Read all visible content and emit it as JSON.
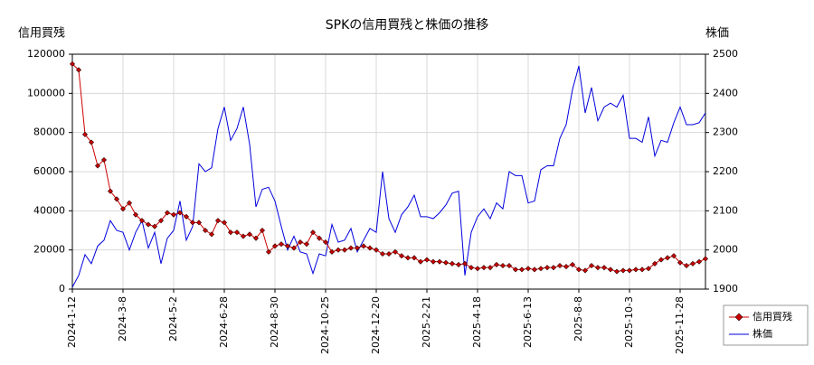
{
  "chart_data": {
    "type": "line",
    "title": "SPKの信用買残と株価の推移",
    "y_label": "信用買残",
    "y2_label": "株価",
    "categories": [
      "2024-1-12",
      null,
      null,
      null,
      null,
      null,
      null,
      null,
      "2024-3-8",
      null,
      null,
      null,
      null,
      null,
      null,
      null,
      "2024-5-2",
      null,
      null,
      null,
      null,
      null,
      null,
      null,
      "2024-6-28",
      null,
      null,
      null,
      null,
      null,
      null,
      null,
      "2024-8-30",
      null,
      null,
      null,
      null,
      null,
      null,
      null,
      "2024-10-25",
      null,
      null,
      null,
      null,
      null,
      null,
      null,
      "2024-12-20",
      null,
      null,
      null,
      null,
      null,
      null,
      null,
      "2025-2-21",
      null,
      null,
      null,
      null,
      null,
      null,
      null,
      "2025-4-18",
      null,
      null,
      null,
      null,
      null,
      null,
      null,
      "2025-6-13",
      null,
      null,
      null,
      null,
      null,
      null,
      null,
      "2025-8-8",
      null,
      null,
      null,
      null,
      null,
      null,
      null,
      "2025-10-3",
      null,
      null,
      null,
      null,
      null,
      null,
      null,
      "2025-11-28",
      null,
      null,
      null,
      null
    ],
    "series": [
      {
        "name": "信用買残",
        "color": "#cc0000",
        "marker": "diamond",
        "axis": "y",
        "values": [
          115000,
          112000,
          79000,
          75000,
          63000,
          66000,
          50000,
          46000,
          41000,
          44000,
          38000,
          35000,
          33000,
          32000,
          35000,
          39000,
          38000,
          39000,
          37000,
          34000,
          34000,
          30000,
          28000,
          35000,
          34000,
          29000,
          29000,
          27000,
          28000,
          26000,
          30000,
          19000,
          22000,
          23000,
          22000,
          21000,
          24000,
          23000,
          29000,
          26000,
          24000,
          19000,
          20000,
          20000,
          21000,
          21000,
          22000,
          21000,
          20000,
          18000,
          18000,
          19000,
          17000,
          16000,
          16000,
          14000,
          15000,
          14000,
          14000,
          13500,
          13000,
          12500,
          13000,
          11000,
          10500,
          11000,
          11000,
          12500,
          12000,
          12000,
          10000,
          10000,
          10500,
          10000,
          10500,
          11000,
          11000,
          12000,
          11500,
          12500,
          10000,
          9500,
          12000,
          11000,
          11000,
          10000,
          9000,
          9500,
          9500,
          10000,
          10000,
          10500,
          13000,
          15000,
          16000,
          17000,
          13500,
          12000,
          13000,
          14000,
          15500
        ]
      },
      {
        "name": "株価",
        "color": "#0000dd",
        "axis": "y2",
        "values": [
          1905,
          1935,
          1988,
          1965,
          2010,
          2025,
          2075,
          2050,
          2045,
          2000,
          2045,
          2075,
          2005,
          2045,
          1965,
          2030,
          2050,
          2125,
          2025,
          2060,
          2220,
          2200,
          2210,
          2310,
          2365,
          2280,
          2310,
          2365,
          2270,
          2110,
          2155,
          2160,
          2125,
          2060,
          2000,
          2035,
          1995,
          1990,
          1940,
          1990,
          1985,
          2065,
          2020,
          2025,
          2055,
          1995,
          2025,
          2055,
          2045,
          2200,
          2080,
          2045,
          2090,
          2110,
          2140,
          2085,
          2085,
          2080,
          2095,
          2115,
          2145,
          2150,
          1935,
          2045,
          2085,
          2105,
          2080,
          2120,
          2105,
          2200,
          2190,
          2190,
          2120,
          2125,
          2205,
          2215,
          2215,
          2285,
          2320,
          2410,
          2470,
          2350,
          2415,
          2330,
          2365,
          2375,
          2365,
          2395,
          2285,
          2285,
          2275,
          2340,
          2240,
          2280,
          2275,
          2325,
          2365,
          2320,
          2320,
          2325,
          2350
        ]
      }
    ],
    "ylim": [
      0,
      120000
    ],
    "yticks": [
      0,
      20000,
      40000,
      60000,
      80000,
      100000,
      120000
    ],
    "y2lim": [
      1900,
      2500
    ],
    "y2ticks": [
      1900,
      2000,
      2100,
      2200,
      2300,
      2400,
      2500
    ],
    "grid": true,
    "legend": "outside-bottom-right"
  }
}
